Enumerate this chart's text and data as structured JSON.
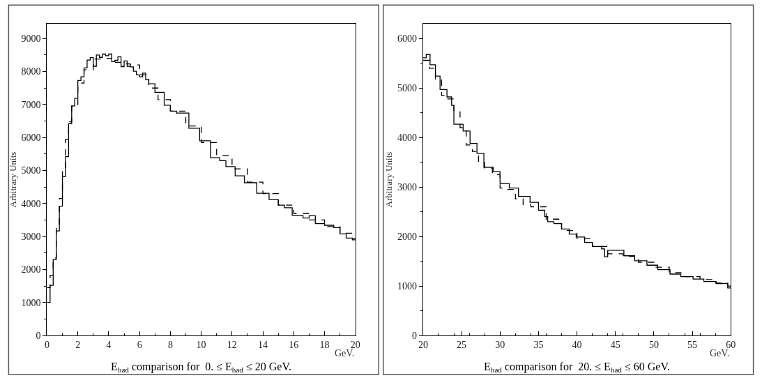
{
  "chart_data": [
    {
      "type": "step",
      "title": "E$_{had}$ comparison for  0. ≤ E$_{had}$ ≤ 20 GeV.",
      "xlabel": "GeV.",
      "ylabel": "Arbitrary Units",
      "xlim": [
        0,
        20
      ],
      "ylim": [
        0,
        9450
      ],
      "xticks": [
        0,
        2,
        4,
        6,
        8,
        10,
        12,
        14,
        16,
        18,
        20
      ],
      "yticks": [
        0,
        1000,
        2000,
        3000,
        4000,
        5000,
        6000,
        7000,
        8000,
        9000
      ],
      "series": [
        {
          "color": "#000000",
          "line_style": "solid",
          "x": [
            0,
            0.2,
            0.4,
            0.6,
            0.8,
            1.0,
            1.2,
            1.4,
            1.6,
            1.8,
            2.0,
            2.2,
            2.4,
            2.6,
            2.8,
            3.0,
            3.2,
            3.4,
            3.6,
            3.8,
            4.0,
            4.2,
            4.4,
            4.6,
            4.8,
            5.0,
            5.2,
            5.4,
            5.6,
            5.8,
            6.0,
            6.2,
            6.4,
            6.6,
            7.0,
            7.6,
            8.0,
            8.4,
            9.2,
            9.9,
            10.6,
            11.2,
            11.6,
            12.2,
            12.8,
            13.6,
            14.4,
            15.0,
            15.4,
            15.9,
            16.6,
            17.0,
            17.4,
            18.0,
            18.6,
            19.0,
            19.4,
            19.8,
            20
          ],
          "values": [
            1000,
            1520,
            2300,
            3170,
            3920,
            4820,
            5420,
            6420,
            6960,
            7190,
            7730,
            7840,
            8110,
            8350,
            8420,
            8160,
            8500,
            8430,
            8530,
            8480,
            8530,
            8300,
            8340,
            8450,
            8150,
            8320,
            8160,
            8140,
            8010,
            7900,
            7840,
            7950,
            7750,
            7630,
            7370,
            6980,
            6800,
            6740,
            6280,
            5900,
            5390,
            5300,
            5120,
            4840,
            4630,
            4310,
            4120,
            3950,
            3870,
            3640,
            3560,
            3630,
            3390,
            3340,
            3270,
            3080,
            2950,
            2930,
            2930
          ]
        },
        {
          "color": "#000000",
          "line_style": "dashed",
          "x": [
            0,
            0.2,
            0.4,
            0.6,
            0.8,
            1.0,
            1.2,
            1.4,
            1.6,
            2.0,
            2.4,
            3.0,
            3.6,
            4.2,
            4.8,
            5.4,
            6.0,
            6.6,
            7.2,
            8.0,
            9.0,
            10.0,
            11.0,
            12.0,
            13.0,
            14.0,
            15.0,
            16.0,
            17.0,
            18.0,
            19.0,
            19.8,
            20
          ],
          "values": [
            1450,
            1820,
            2350,
            3270,
            4150,
            5050,
            5950,
            6480,
            6950,
            7650,
            8050,
            8380,
            8400,
            8280,
            8230,
            8200,
            7900,
            7500,
            7150,
            6800,
            6350,
            5850,
            5450,
            5050,
            4650,
            4300,
            3950,
            3700,
            3500,
            3300,
            3100,
            2900,
            2900
          ]
        }
      ]
    },
    {
      "type": "step",
      "title": "E$_{had}$ comparison for  20. ≤ E$_{had}$ ≤ 60 GeV.",
      "xlabel": "GeV.",
      "ylabel": "Arbitrary Units",
      "xlim": [
        20,
        60
      ],
      "ylim": [
        0,
        6300
      ],
      "xticks": [
        20,
        25,
        30,
        35,
        40,
        45,
        50,
        55,
        60
      ],
      "yticks": [
        0,
        1000,
        2000,
        3000,
        4000,
        5000,
        6000
      ],
      "series": [
        {
          "color": "#000000",
          "line_style": "solid",
          "x": [
            20,
            20.4,
            20.9,
            21.6,
            22.2,
            23.1,
            23.7,
            24.0,
            25.2,
            26.1,
            27.0,
            27.9,
            29.1,
            30.0,
            31.2,
            32.4,
            33.9,
            35.0,
            35.8,
            36.2,
            37,
            38,
            39,
            39.9,
            41,
            42,
            43.2,
            43.6,
            44.0,
            46.1,
            47.5,
            49.1,
            50.5,
            52.1,
            53.5,
            55.1,
            56.5,
            58.1,
            59.6,
            60
          ],
          "values": [
            5610,
            5680,
            5470,
            5240,
            4970,
            4820,
            4650,
            4270,
            4130,
            3880,
            3680,
            3400,
            3310,
            3070,
            2980,
            2810,
            2690,
            2530,
            2400,
            2300,
            2260,
            2150,
            2050,
            1990,
            1880,
            1800,
            1750,
            1590,
            1720,
            1610,
            1510,
            1420,
            1330,
            1240,
            1190,
            1140,
            1090,
            1050,
            960,
            960
          ]
        },
        {
          "color": "#000000",
          "line_style": "dashed",
          "x": [
            20,
            20.8,
            21.6,
            22.4,
            23.2,
            24.0,
            24.8,
            25.6,
            26.4,
            27.2,
            28,
            29,
            30,
            31,
            32,
            33,
            34,
            36,
            38,
            40,
            42,
            44,
            46,
            48,
            50,
            52,
            54,
            56,
            58,
            59.6,
            60
          ],
          "values": [
            5560,
            5400,
            5180,
            4850,
            4780,
            4520,
            4200,
            3850,
            3720,
            3520,
            3380,
            3250,
            2980,
            2950,
            2760,
            2650,
            2600,
            2350,
            2120,
            1960,
            1800,
            1650,
            1600,
            1480,
            1380,
            1270,
            1190,
            1130,
            1060,
            1000,
            1000
          ]
        }
      ]
    }
  ]
}
